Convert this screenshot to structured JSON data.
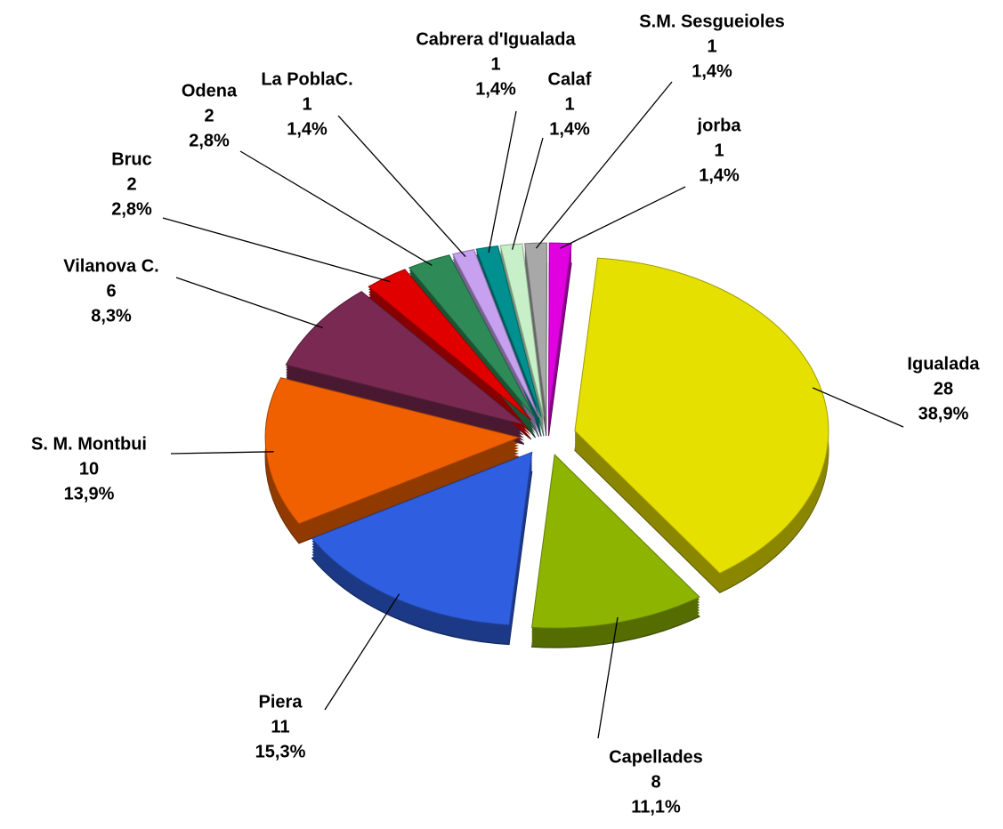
{
  "chart_data": {
    "type": "pie",
    "categories": [
      "Igualada",
      "Capellades",
      "Piera",
      "S. M. Montbui",
      "Vilanova  C.",
      "Bruc",
      "Odena",
      "La PoblaC.",
      "Cabrera d'Igualada",
      "Calaf",
      "S.M. Sesgueioles",
      "jorba"
    ],
    "values": [
      28,
      8,
      11,
      10,
      6,
      2,
      2,
      1,
      1,
      1,
      1,
      1
    ],
    "percents": [
      38.9,
      11.1,
      15.3,
      13.9,
      8.3,
      2.8,
      2.8,
      1.4,
      1.4,
      1.4,
      1.4,
      1.4
    ],
    "percent_labels": [
      "38,9%",
      "11,1%",
      "15,3%",
      "13,9%",
      "8,3%",
      "2,8%",
      "2,8%",
      "1,4%",
      "1,4%",
      "1,4%",
      "1,4%",
      "1,4%"
    ],
    "colors": [
      "#e6e000",
      "#8cb400",
      "#2f5fe0",
      "#f06000",
      "#7a2a52",
      "#e00000",
      "#2e8b57",
      "#c8a0f0",
      "#009090",
      "#c8f0c8",
      "#a8a8a8",
      "#e000e0"
    ]
  }
}
